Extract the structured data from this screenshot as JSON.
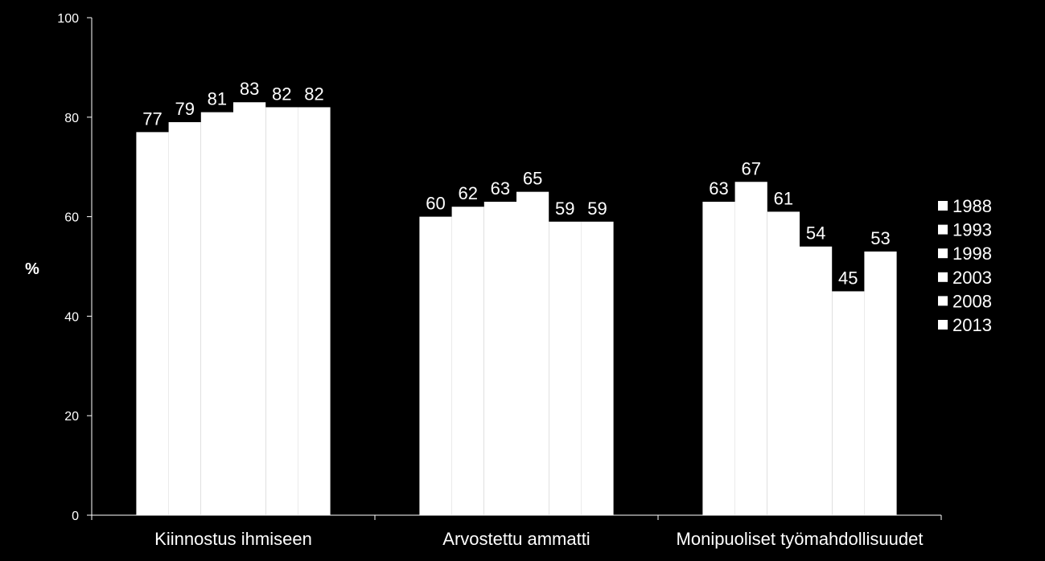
{
  "chart_data": {
    "type": "bar",
    "title": "",
    "xlabel": "",
    "ylabel": "%",
    "ylim": [
      0,
      100
    ],
    "yticks": [
      0,
      20,
      40,
      60,
      80,
      100
    ],
    "grid": false,
    "legend_position": "right",
    "categories": [
      "Kiinnostus ihmiseen",
      "Arvostettu ammatti",
      "Monipuoliset työmahdollisuudet"
    ],
    "series": [
      {
        "name": "1988",
        "values": [
          77,
          60,
          63
        ]
      },
      {
        "name": "1993",
        "values": [
          79,
          62,
          67
        ]
      },
      {
        "name": "1998",
        "values": [
          81,
          63,
          61
        ]
      },
      {
        "name": "2003",
        "values": [
          83,
          65,
          54
        ]
      },
      {
        "name": "2008",
        "values": [
          82,
          59,
          45
        ]
      },
      {
        "name": "2013",
        "values": [
          82,
          59,
          53
        ]
      }
    ]
  },
  "colors": {
    "background": "#000000",
    "bar": "#ffffff",
    "axis": "#ffffff",
    "text": "#ffffff"
  }
}
